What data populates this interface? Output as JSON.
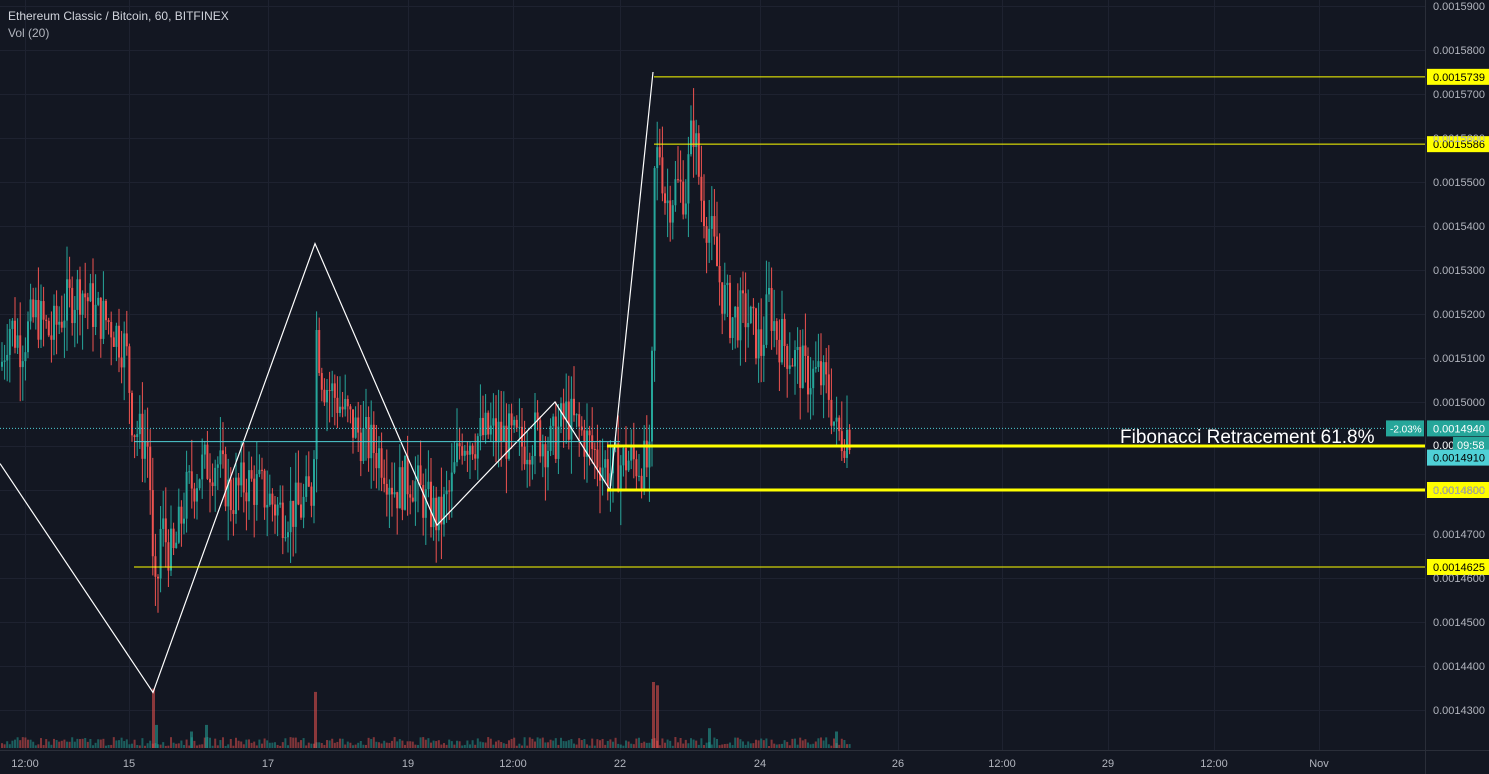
{
  "header": {
    "title": "Ethereum Classic / Bitcoin, 60, BITFINEX",
    "volume_indicator": "Vol (20)"
  },
  "annotation": {
    "text": "Fibonacci Retracement 61.8%"
  },
  "price_badges": {
    "change_percent": "-2.03%",
    "last_price": "0.0014940",
    "countdown": "09:58",
    "countdown_prefix": "0.00",
    "crosshair_price": "0.0014910"
  },
  "colors": {
    "background": "#131722",
    "grid": "#1e2230",
    "up_candle": "#26a69a",
    "down_candle": "#ef5350",
    "level_line": "#ffff00",
    "pattern_line": "#ffffff",
    "current_price_line": "#4fd0d6"
  },
  "chart_data": {
    "type": "candlestick",
    "symbol": "Ethereum Classic / Bitcoin",
    "interval": "60",
    "exchange": "BITFINEX",
    "y_axis": {
      "range": [
        0.00142,
        0.001592
      ],
      "ticks": [
        "0.0015900",
        "0.0015800",
        "0.0015700",
        "0.0015600",
        "0.0015500",
        "0.0015400",
        "0.0015300",
        "0.0015200",
        "0.0015100",
        "0.0015000",
        "0.0014900",
        "0.0014800",
        "0.0014700",
        "0.0014600",
        "0.0014500",
        "0.0014400",
        "0.0014300"
      ]
    },
    "x_axis": {
      "ticks": [
        "12:00",
        "15",
        "17",
        "19",
        "12:00",
        "22",
        "24",
        "26",
        "12:00",
        "29",
        "12:00",
        "Nov"
      ]
    },
    "price_path": [
      [
        0,
        0.001508
      ],
      [
        8,
        0.001518
      ],
      [
        20,
        0.001513
      ],
      [
        35,
        0.00152
      ],
      [
        50,
        0.001515
      ],
      [
        65,
        0.001522
      ],
      [
        80,
        0.001526
      ],
      [
        95,
        0.00152
      ],
      [
        110,
        0.001518
      ],
      [
        125,
        0.001512
      ],
      [
        132,
        0.001495
      ],
      [
        140,
        0.001492
      ],
      [
        148,
        0.00149
      ],
      [
        152,
        0.00146
      ],
      [
        155,
        0.001453
      ],
      [
        160,
        0.001472
      ],
      [
        172,
        0.001464
      ],
      [
        185,
        0.001479
      ],
      [
        200,
        0.001485
      ],
      [
        215,
        0.001487
      ],
      [
        230,
        0.001478
      ],
      [
        245,
        0.001482
      ],
      [
        260,
        0.00148
      ],
      [
        280,
        0.001475
      ],
      [
        300,
        0.001476
      ],
      [
        312,
        0.00148
      ],
      [
        315,
        0.001517
      ],
      [
        322,
        0.001505
      ],
      [
        335,
        0.001501
      ],
      [
        350,
        0.001495
      ],
      [
        365,
        0.001491
      ],
      [
        380,
        0.001488
      ],
      [
        395,
        0.00148
      ],
      [
        410,
        0.001483
      ],
      [
        425,
        0.001477
      ],
      [
        438,
        0.001473
      ],
      [
        450,
        0.00148
      ],
      [
        460,
        0.001492
      ],
      [
        475,
        0.001492
      ],
      [
        490,
        0.001493
      ],
      [
        505,
        0.001492
      ],
      [
        520,
        0.00149
      ],
      [
        535,
        0.001493
      ],
      [
        550,
        0.00149
      ],
      [
        565,
        0.001497
      ],
      [
        580,
        0.001493
      ],
      [
        595,
        0.001488
      ],
      [
        610,
        0.001484
      ],
      [
        625,
        0.001487
      ],
      [
        640,
        0.001486
      ],
      [
        650,
        0.001485
      ],
      [
        653,
        0.00155
      ],
      [
        658,
        0.001559
      ],
      [
        665,
        0.001545
      ],
      [
        675,
        0.001549
      ],
      [
        685,
        0.001548
      ],
      [
        692,
        0.001564
      ],
      [
        700,
        0.001547
      ],
      [
        710,
        0.001538
      ],
      [
        720,
        0.001526
      ],
      [
        730,
        0.001519
      ],
      [
        745,
        0.00152
      ],
      [
        760,
        0.001512
      ],
      [
        768,
        0.001523
      ],
      [
        775,
        0.001516
      ],
      [
        790,
        0.001511
      ],
      [
        805,
        0.001506
      ],
      [
        818,
        0.001506
      ],
      [
        828,
        0.001502
      ],
      [
        836,
        0.001492
      ],
      [
        843,
        0.001493
      ],
      [
        850,
        0.001494
      ]
    ],
    "volume_spikes": [
      [
        152,
        0.9
      ],
      [
        155,
        0.35
      ],
      [
        190,
        0.25
      ],
      [
        205,
        0.35
      ],
      [
        314,
        0.85
      ],
      [
        652,
        1.0
      ],
      [
        656,
        0.95
      ],
      [
        708,
        0.3
      ],
      [
        835,
        0.25
      ]
    ],
    "pattern_lines": [
      [
        [
          0,
          0.001486
        ],
        [
          153,
          0.001434
        ],
        [
          315,
          0.001536
        ],
        [
          437,
          0.001472
        ],
        [
          555,
          0.0015
        ],
        [
          610,
          0.00148
        ],
        [
          653,
          0.001575
        ]
      ]
    ],
    "horizontal_levels": [
      {
        "price": 0.0015739,
        "label": "0.0015739",
        "x_start": 654,
        "thick": false
      },
      {
        "price": 0.0015586,
        "label": "0.0015586",
        "x_start": 654,
        "thick": false
      },
      {
        "price": 0.00148,
        "label": "0.0014800",
        "x_start": 607,
        "thick": true
      },
      {
        "price": 0.00149,
        "label": "0.0014900",
        "x_start": 607,
        "thick": true
      },
      {
        "price": 0.0014625,
        "label": "0.0014625",
        "x_start": 134,
        "thick": false
      }
    ],
    "current_price": 0.001494,
    "cyan_level": 0.001491
  }
}
